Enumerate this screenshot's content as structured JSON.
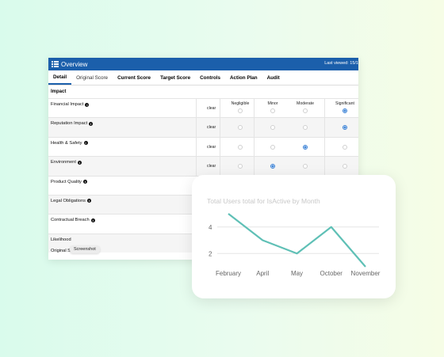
{
  "app": {
    "title": "Overview",
    "last_viewed": "Last viewed: 15/1",
    "tabs": [
      "Detail",
      "Original Score",
      "Current Score",
      "Target Score",
      "Controls",
      "Action Plan",
      "Audit"
    ],
    "section": "Impact",
    "clear_label": "clear",
    "columns": [
      "Negligible",
      "Minor",
      "Moderate",
      "Significant"
    ],
    "rows": [
      {
        "label": "Financial Impact",
        "selected": 3
      },
      {
        "label": "Reputation Impact",
        "selected": 3
      },
      {
        "label": "Health & Safety",
        "selected": 2
      },
      {
        "label": "Environment",
        "selected": 1
      },
      {
        "label": "Product Quality"
      },
      {
        "label": "Legal Obligations"
      },
      {
        "label": "Contractual Breach"
      },
      {
        "label": "Likelihood"
      }
    ],
    "footer_label": "Original Score",
    "tooltip": "Screenshot"
  },
  "chart_data": {
    "type": "line",
    "title": "Total Users total for IsActive by Month",
    "categories": [
      "February",
      "April",
      "May",
      "October",
      "November"
    ],
    "values": [
      5,
      3,
      2,
      4,
      1
    ],
    "yticks": [
      2,
      4
    ],
    "ylim": [
      1,
      5
    ],
    "color": "#5fc0b6",
    "grid": true
  }
}
